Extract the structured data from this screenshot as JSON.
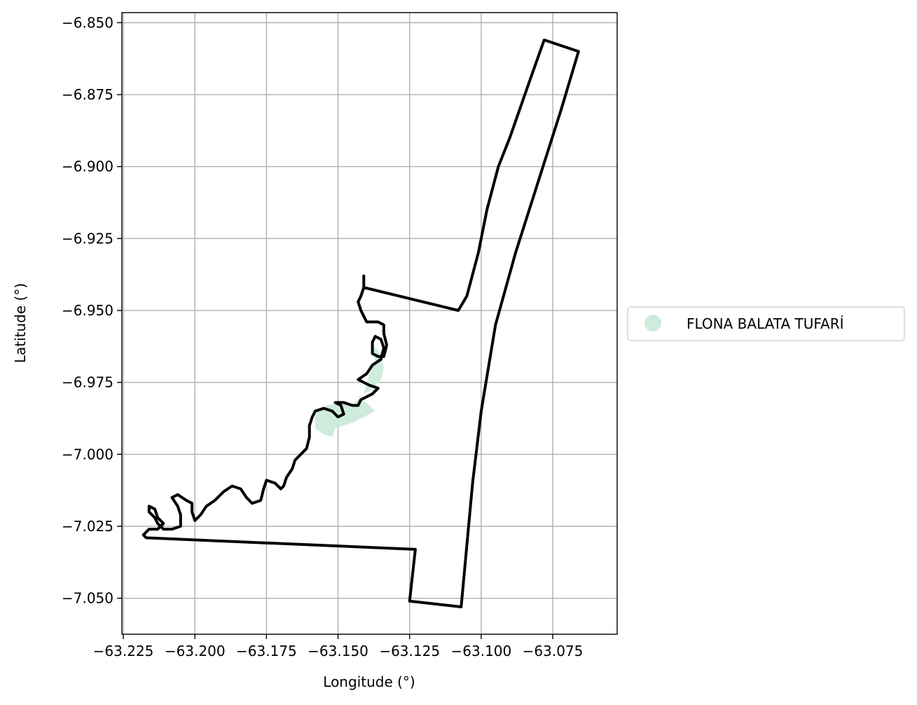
{
  "chart_data": {
    "type": "map",
    "title": "",
    "xlabel": "Longitude (°)",
    "ylabel": "Latitude (°)",
    "xlim": [
      -63.2255,
      -63.0525
    ],
    "ylim": [
      -7.0625,
      -6.8465
    ],
    "grid": true,
    "x_ticks": [
      -63.225,
      -63.2,
      -63.175,
      -63.15,
      -63.125,
      -63.1,
      -63.075
    ],
    "x_tick_labels": [
      "−63.225",
      "−63.200",
      "−63.175",
      "−63.150",
      "−63.125",
      "−63.100",
      "−63.075"
    ],
    "y_ticks": [
      -6.85,
      -6.875,
      -6.9,
      -6.925,
      -6.95,
      -6.975,
      -7.0,
      -7.025,
      -7.05
    ],
    "y_tick_labels": [
      "−6.850",
      "−6.875",
      "−6.900",
      "−6.925",
      "−6.950",
      "−6.975",
      "−7.000",
      "−7.025",
      "−7.050"
    ],
    "legend": {
      "placement": "right",
      "entries": [
        {
          "label": "FLONA BALATA TUFARÍ",
          "color": "#cfebdc",
          "marker": "circle"
        }
      ]
    },
    "boundary_color": "#000000",
    "fill_color": "#cfebdc",
    "fill_region": [
      [
        -63.138,
        -6.962
      ],
      [
        -63.135,
        -6.965
      ],
      [
        -63.134,
        -6.97
      ],
      [
        -63.135,
        -6.974
      ],
      [
        -63.139,
        -6.978
      ],
      [
        -63.143,
        -6.98
      ],
      [
        -63.139,
        -6.983
      ],
      [
        -63.137,
        -6.985
      ],
      [
        -63.141,
        -6.987
      ],
      [
        -63.145,
        -6.989
      ],
      [
        -63.148,
        -6.99
      ],
      [
        -63.151,
        -6.991
      ],
      [
        -63.152,
        -6.994
      ],
      [
        -63.155,
        -6.993
      ],
      [
        -63.158,
        -6.991
      ],
      [
        -63.158,
        -6.986
      ],
      [
        -63.154,
        -6.983
      ],
      [
        -63.149,
        -6.982
      ],
      [
        -63.145,
        -6.983
      ],
      [
        -63.141,
        -6.979
      ],
      [
        -63.139,
        -6.972
      ],
      [
        -63.137,
        -6.968
      ],
      [
        -63.138,
        -6.962
      ]
    ],
    "boundary": [
      [
        -63.141,
        -6.938
      ],
      [
        -63.141,
        -6.942
      ],
      [
        -63.108,
        -6.95
      ],
      [
        -63.105,
        -6.945
      ],
      [
        -63.101,
        -6.93
      ],
      [
        -63.098,
        -6.915
      ],
      [
        -63.094,
        -6.9
      ],
      [
        -63.09,
        -6.89
      ],
      [
        -63.083,
        -6.87
      ],
      [
        -63.078,
        -6.856
      ],
      [
        -63.066,
        -6.86
      ],
      [
        -63.072,
        -6.88
      ],
      [
        -63.08,
        -6.905
      ],
      [
        -63.088,
        -6.93
      ],
      [
        -63.095,
        -6.955
      ],
      [
        -63.1,
        -6.985
      ],
      [
        -63.103,
        -7.01
      ],
      [
        -63.107,
        -7.053
      ],
      [
        -63.125,
        -7.051
      ],
      [
        -63.123,
        -7.033
      ],
      [
        -63.217,
        -7.029
      ],
      [
        -63.218,
        -7.028
      ],
      [
        -63.216,
        -7.026
      ],
      [
        -63.213,
        -7.026
      ],
      [
        -63.211,
        -7.024
      ],
      [
        -63.213,
        -7.022
      ],
      [
        -63.214,
        -7.019
      ],
      [
        -63.216,
        -7.018
      ],
      [
        -63.216,
        -7.02
      ],
      [
        -63.214,
        -7.022
      ],
      [
        -63.213,
        -7.024
      ],
      [
        -63.211,
        -7.026
      ],
      [
        -63.208,
        -7.026
      ],
      [
        -63.205,
        -7.025
      ],
      [
        -63.205,
        -7.021
      ],
      [
        -63.206,
        -7.018
      ],
      [
        -63.208,
        -7.015
      ],
      [
        -63.206,
        -7.014
      ],
      [
        -63.203,
        -7.016
      ],
      [
        -63.201,
        -7.017
      ],
      [
        -63.201,
        -7.02
      ],
      [
        -63.2,
        -7.023
      ],
      [
        -63.198,
        -7.021
      ],
      [
        -63.196,
        -7.018
      ],
      [
        -63.193,
        -7.016
      ],
      [
        -63.19,
        -7.013
      ],
      [
        -63.187,
        -7.011
      ],
      [
        -63.184,
        -7.012
      ],
      [
        -63.182,
        -7.015
      ],
      [
        -63.18,
        -7.017
      ],
      [
        -63.177,
        -7.016
      ],
      [
        -63.176,
        -7.012
      ],
      [
        -63.175,
        -7.009
      ],
      [
        -63.172,
        -7.01
      ],
      [
        -63.17,
        -7.012
      ],
      [
        -63.169,
        -7.011
      ],
      [
        -63.168,
        -7.008
      ],
      [
        -63.166,
        -7.005
      ],
      [
        -63.165,
        -7.002
      ],
      [
        -63.163,
        -7.0
      ],
      [
        -63.161,
        -6.998
      ],
      [
        -63.16,
        -6.994
      ],
      [
        -63.16,
        -6.99
      ],
      [
        -63.159,
        -6.987
      ],
      [
        -63.158,
        -6.985
      ],
      [
        -63.155,
        -6.984
      ],
      [
        -63.152,
        -6.985
      ],
      [
        -63.15,
        -6.987
      ],
      [
        -63.148,
        -6.986
      ],
      [
        -63.149,
        -6.983
      ],
      [
        -63.151,
        -6.982
      ],
      [
        -63.148,
        -6.982
      ],
      [
        -63.145,
        -6.983
      ],
      [
        -63.143,
        -6.983
      ],
      [
        -63.142,
        -6.981
      ],
      [
        -63.14,
        -6.98
      ],
      [
        -63.138,
        -6.979
      ],
      [
        -63.136,
        -6.977
      ],
      [
        -63.139,
        -6.976
      ],
      [
        -63.143,
        -6.974
      ],
      [
        -63.14,
        -6.972
      ],
      [
        -63.138,
        -6.969
      ],
      [
        -63.135,
        -6.967
      ],
      [
        -63.134,
        -6.963
      ],
      [
        -63.135,
        -6.96
      ],
      [
        -63.137,
        -6.959
      ],
      [
        -63.138,
        -6.961
      ],
      [
        -63.138,
        -6.965
      ],
      [
        -63.136,
        -6.966
      ],
      [
        -63.134,
        -6.966
      ],
      [
        -63.133,
        -6.962
      ],
      [
        -63.134,
        -6.958
      ],
      [
        -63.134,
        -6.955
      ],
      [
        -63.136,
        -6.954
      ],
      [
        -63.14,
        -6.954
      ],
      [
        -63.141,
        -6.952
      ],
      [
        -63.142,
        -6.95
      ],
      [
        -63.143,
        -6.947
      ],
      [
        -63.142,
        -6.945
      ],
      [
        -63.141,
        -6.942
      ],
      [
        -63.141,
        -6.938
      ]
    ]
  }
}
